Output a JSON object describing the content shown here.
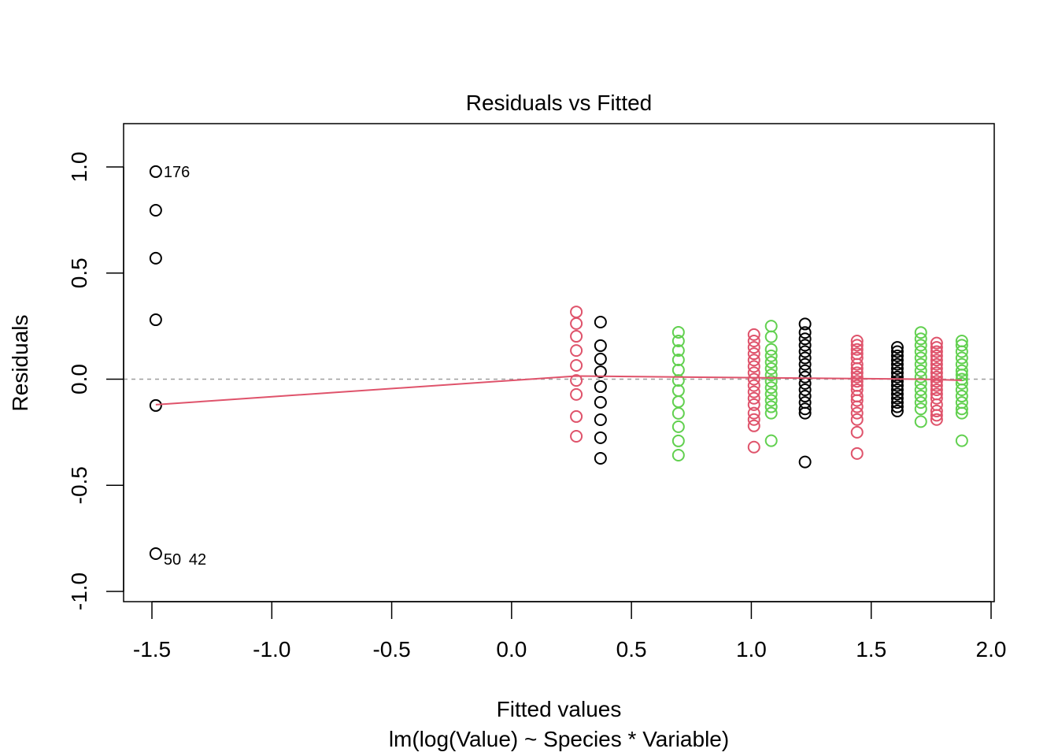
{
  "chart_data": {
    "type": "scatter",
    "title": "Residuals vs Fitted",
    "xlabel": "Fitted values",
    "subtitle": "lm(log(Value) ~ Species * Variable)",
    "ylabel": "Residuals",
    "xlim": [
      -1.65,
      2.02
    ],
    "ylim": [
      -1.05,
      1.2
    ],
    "xticks": [
      -1.5,
      -1.0,
      -0.5,
      0.0,
      0.5,
      1.0,
      1.5,
      2.0
    ],
    "xtick_labels": [
      "-1.5",
      "-1.0",
      "-0.5",
      "0.0",
      "0.5",
      "1.0",
      "1.5",
      "2.0"
    ],
    "yticks": [
      -1.0,
      -0.5,
      0.0,
      0.5,
      1.0
    ],
    "ytick_labels": [
      "-1.0",
      "-0.5",
      "0.0",
      "0.5",
      "1.0"
    ],
    "grid": false,
    "reference_line": {
      "y": 0,
      "color": "#9E9E9E",
      "style": "dashed"
    },
    "colors": {
      "black": "#000000",
      "red": "#DF536B",
      "green": "#61D04F"
    },
    "groups": [
      {
        "x": -1.484,
        "color": "black",
        "residuals": [
          0.978,
          0.796,
          0.57,
          0.28,
          -0.124,
          -0.822
        ]
      },
      {
        "x": 0.27,
        "color": "red",
        "residuals": [
          0.317,
          0.262,
          0.202,
          0.135,
          0.065,
          -0.006,
          -0.072,
          -0.176,
          -0.269
        ]
      },
      {
        "x": 0.371,
        "color": "black",
        "residuals": [
          0.269,
          0.158,
          0.095,
          0.035,
          -0.035,
          -0.109,
          -0.191,
          -0.276,
          -0.373
        ]
      },
      {
        "x": 0.696,
        "color": "green",
        "residuals": [
          0.221,
          0.18,
          0.135,
          0.091,
          0.043,
          -0.006,
          -0.054,
          -0.106,
          -0.161,
          -0.224,
          -0.291,
          -0.358
        ]
      },
      {
        "x": 1.011,
        "color": "red",
        "residuals": [
          0.21,
          0.18,
          0.15,
          0.12,
          0.09,
          0.06,
          0.03,
          0,
          -0.03,
          -0.06,
          -0.09,
          -0.12,
          -0.16,
          -0.19,
          -0.22,
          -0.32
        ]
      },
      {
        "x": 1.083,
        "color": "green",
        "residuals": [
          0.25,
          0.2,
          0.14,
          0.11,
          0.08,
          0.05,
          0.02,
          -0.01,
          -0.04,
          -0.07,
          -0.1,
          -0.13,
          -0.16,
          -0.29
        ]
      },
      {
        "x": 1.224,
        "color": "black",
        "residuals": [
          0.26,
          0.22,
          0.19,
          0.16,
          0.13,
          0.1,
          0.07,
          0.04,
          0.01,
          -0.02,
          -0.05,
          -0.08,
          -0.11,
          -0.14,
          -0.16,
          -0.39
        ]
      },
      {
        "x": 1.441,
        "color": "red",
        "residuals": [
          0.18,
          0.16,
          0.14,
          0.12,
          0.1,
          0.07,
          0.05,
          0.03,
          0.01,
          -0.01,
          -0.03,
          -0.05,
          -0.08,
          -0.1,
          -0.13,
          -0.16,
          -0.19,
          -0.25,
          -0.35
        ]
      },
      {
        "x": 1.609,
        "color": "black",
        "residuals": [
          0.15,
          0.13,
          0.11,
          0.09,
          0.07,
          0.05,
          0.03,
          0.01,
          -0.01,
          -0.03,
          -0.05,
          -0.07,
          -0.09,
          -0.11,
          -0.13,
          -0.15
        ]
      },
      {
        "x": 1.707,
        "color": "green",
        "residuals": [
          0.22,
          0.19,
          0.16,
          0.13,
          0.1,
          0.07,
          0.04,
          0.01,
          -0.02,
          -0.05,
          -0.08,
          -0.11,
          -0.14,
          -0.2
        ]
      },
      {
        "x": 1.773,
        "color": "red",
        "residuals": [
          0.17,
          0.15,
          0.13,
          0.11,
          0.09,
          0.07,
          0.05,
          0.03,
          0.01,
          -0.01,
          -0.03,
          -0.05,
          -0.07,
          -0.09,
          -0.12,
          -0.15,
          -0.17,
          -0.19
        ]
      },
      {
        "x": 1.878,
        "color": "green",
        "residuals": [
          0.18,
          0.16,
          0.13,
          0.1,
          0.07,
          0.04,
          0.02,
          0,
          -0.02,
          -0.05,
          -0.08,
          -0.11,
          -0.14,
          -0.16,
          -0.29
        ]
      }
    ],
    "smoother": {
      "color": "#DF536B",
      "x": [
        -1.484,
        0.27,
        0.7,
        1.2,
        1.7,
        1.878
      ],
      "y": [
        -0.12,
        0.015,
        0.01,
        0.005,
        0.0,
        -0.005
      ]
    },
    "point_labels": [
      {
        "text": "176",
        "x": -1.484,
        "y": 0.978
      },
      {
        "text": "50",
        "x": -1.484,
        "y": -0.822
      },
      {
        "text": "42",
        "x": -1.484,
        "y": -0.822
      }
    ]
  }
}
